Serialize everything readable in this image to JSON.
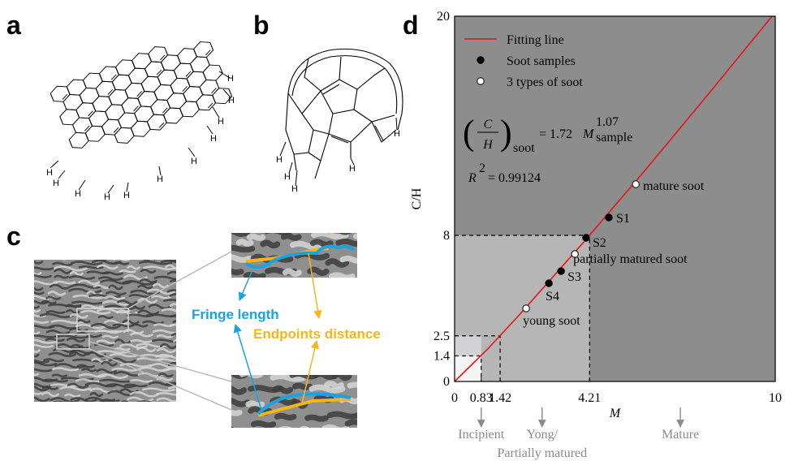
{
  "panel_labels": [
    "a",
    "b",
    "c",
    "d"
  ],
  "hydrogen_label": "H",
  "panel_c": {
    "fringe_length": "Fringe length",
    "endpoints_distance": "Endpoints distance"
  },
  "chart_data": {
    "type": "scatter",
    "xlabel": "M",
    "ylabel": "C/H",
    "xlim": [
      0,
      10
    ],
    "ylim": [
      0,
      20
    ],
    "xticks": [
      0,
      0.83,
      1.42,
      4.21,
      10
    ],
    "yticks": [
      0,
      1.4,
      2.5,
      8,
      20
    ],
    "legend": "upper left",
    "background": "#8d8d8d",
    "shading": [
      {
        "x": 4.21,
        "y": 8,
        "color": "#b6b6b6"
      },
      {
        "x": 0.83,
        "y": 2.5,
        "color": "#d3d3d7"
      },
      {
        "x": 0.83,
        "y": 1.4,
        "color": "#f4f4f4"
      }
    ],
    "guides": [
      {
        "x": 0.83,
        "y": 1.4
      },
      {
        "x": 1.42,
        "y": 2.5
      },
      {
        "x": 4.21,
        "y": 8
      }
    ],
    "stages": [
      {
        "label_lines": [
          "Incipient"
        ],
        "x": 0.83
      },
      {
        "label_lines": [
          "Yong/",
          "Partially matured"
        ],
        "x": 2.73
      },
      {
        "label_lines": [
          "Mature"
        ],
        "x": 7.04
      }
    ],
    "series": [
      {
        "name": "Fitting line",
        "type": "line",
        "color": "#e8141c",
        "x": [
          0,
          1,
          2,
          4,
          6,
          8,
          9.9
        ],
        "values": [
          0,
          1.72,
          3.61,
          7.58,
          11.69,
          15.92,
          20
        ]
      },
      {
        "name": "Soot samples",
        "type": "scatter",
        "color": "#000000",
        "marker_fill": "#000000",
        "x": [
          4.81,
          4.1,
          3.32,
          2.94
        ],
        "values": [
          8.98,
          7.87,
          6.04,
          5.38
        ],
        "labels": [
          "S1",
          "S2",
          "S3",
          "S4"
        ]
      },
      {
        "name": "3 types of soot",
        "type": "scatter",
        "color": "#000000",
        "marker_fill": "#ffffff",
        "x": [
          5.65,
          3.75,
          2.23
        ],
        "values": [
          10.8,
          6.98,
          4.0
        ],
        "labels": [
          "mature soot",
          "partially matured soot",
          "young soot"
        ]
      }
    ],
    "equation": {
      "numerator": "C",
      "denominator": "H",
      "subscript": "soot",
      "rhs": "= 1.72",
      "variable": "M",
      "exponent": "1.07",
      "variable_subscript": "sample"
    },
    "r_squared": {
      "symbol": "R",
      "power": "2",
      "rhs": "= 0.99124"
    }
  }
}
